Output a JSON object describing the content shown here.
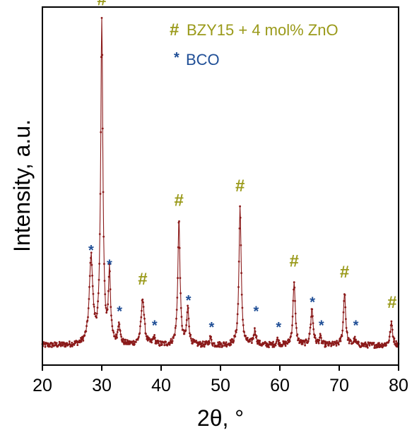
{
  "chart_data": {
    "type": "line",
    "xlabel": "2θ, °",
    "ylabel": "Intensity, a.u.",
    "xlim": [
      20,
      80
    ],
    "ylim": [
      0,
      100
    ],
    "x_ticks": [
      20,
      30,
      40,
      50,
      60,
      70,
      80
    ],
    "y_ticks_shown": false,
    "grid": false,
    "colors": {
      "line": "#8b1a1a",
      "hash_marker": "#9a9a1a",
      "star_marker": "#1f4e96"
    },
    "legend": {
      "placement": "top-right",
      "entries": [
        {
          "symbol": "#",
          "label": "BZY15 + 4 mol% ZnO",
          "color": "#9a9a1a"
        },
        {
          "symbol": "*",
          "label": "BCO",
          "color": "#1f4e96"
        }
      ]
    },
    "baseline": 5.5,
    "peaks": [
      {
        "x": 28.2,
        "height": 24,
        "width": 0.35
      },
      {
        "x": 30.0,
        "height": 90,
        "width": 0.22
      },
      {
        "x": 31.3,
        "height": 20,
        "width": 0.2
      },
      {
        "x": 32.9,
        "height": 6,
        "width": 0.2
      },
      {
        "x": 36.9,
        "height": 13,
        "width": 0.3
      },
      {
        "x": 38.8,
        "height": 2,
        "width": 0.2
      },
      {
        "x": 43.0,
        "height": 35,
        "width": 0.22
      },
      {
        "x": 44.5,
        "height": 10,
        "width": 0.22
      },
      {
        "x": 48.3,
        "height": 2,
        "width": 0.2
      },
      {
        "x": 53.3,
        "height": 39,
        "width": 0.22
      },
      {
        "x": 55.8,
        "height": 4,
        "width": 0.25
      },
      {
        "x": 59.6,
        "height": 1.5,
        "width": 0.2
      },
      {
        "x": 62.4,
        "height": 18,
        "width": 0.22
      },
      {
        "x": 65.4,
        "height": 10,
        "width": 0.25
      },
      {
        "x": 66.8,
        "height": 2,
        "width": 0.2
      },
      {
        "x": 70.9,
        "height": 15,
        "width": 0.22
      },
      {
        "x": 72.6,
        "height": 1.5,
        "width": 0.2
      },
      {
        "x": 78.8,
        "height": 6,
        "width": 0.25
      }
    ],
    "annotations": [
      {
        "symbol": "#",
        "x": 30.0,
        "y": 100.5
      },
      {
        "symbol": "*",
        "x": 28.2,
        "y": 32.5
      },
      {
        "symbol": "*",
        "x": 31.3,
        "y": 28.5
      },
      {
        "symbol": "*",
        "x": 33.0,
        "y": 15.5
      },
      {
        "symbol": "#",
        "x": 36.9,
        "y": 22.5
      },
      {
        "symbol": "*",
        "x": 38.9,
        "y": 11.5
      },
      {
        "symbol": "#",
        "x": 43.0,
        "y": 44.5
      },
      {
        "symbol": "*",
        "x": 44.6,
        "y": 18.5
      },
      {
        "symbol": "*",
        "x": 48.5,
        "y": 11
      },
      {
        "symbol": "#",
        "x": 53.3,
        "y": 48.5
      },
      {
        "symbol": "*",
        "x": 56.0,
        "y": 15.5
      },
      {
        "symbol": "*",
        "x": 59.8,
        "y": 11
      },
      {
        "symbol": "#",
        "x": 62.4,
        "y": 27.5
      },
      {
        "symbol": "*",
        "x": 65.5,
        "y": 18
      },
      {
        "symbol": "*",
        "x": 67.0,
        "y": 11.5
      },
      {
        "symbol": "#",
        "x": 70.9,
        "y": 24.5
      },
      {
        "symbol": "*",
        "x": 72.8,
        "y": 11.5
      },
      {
        "symbol": "#",
        "x": 78.9,
        "y": 16
      }
    ]
  }
}
